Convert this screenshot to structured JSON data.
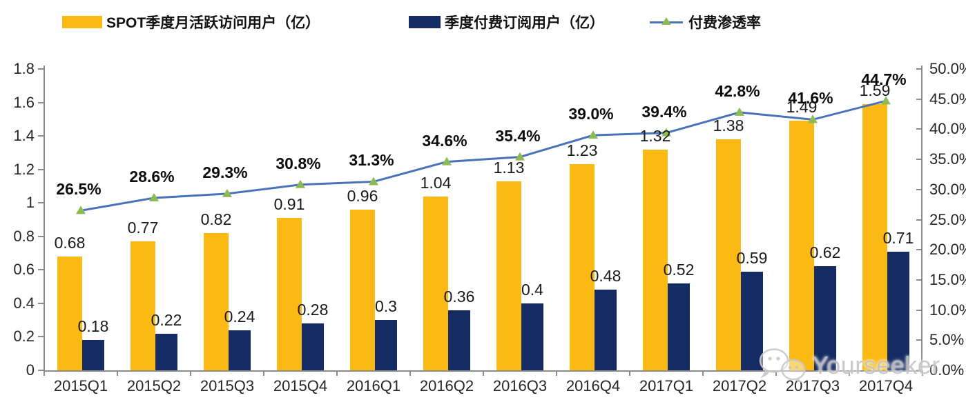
{
  "colors": {
    "mau_bar": "#FBB914",
    "sub_bar": "#142B63",
    "line": "#4A72B8",
    "marker": "#8CBB55",
    "axis": "#8C8C8C"
  },
  "legend": {
    "items": [
      {
        "label": "SPOT季度月活跃访问用户（亿）"
      },
      {
        "label": "季度付费订阅用户（亿）"
      },
      {
        "label": "付费渗透率"
      }
    ]
  },
  "watermark": {
    "text": "Yourseeker"
  },
  "chart_data": {
    "type": "combo-bar-line",
    "title": "",
    "grid": false,
    "legend_position": "top",
    "categories": [
      "2015Q1",
      "2015Q2",
      "2015Q3",
      "2015Q4",
      "2016Q1",
      "2016Q2",
      "2016Q3",
      "2016Q4",
      "2017Q1",
      "2017Q2",
      "2017Q3",
      "2017Q4"
    ],
    "series": [
      {
        "name": "SPOT季度月活跃访问用户（亿）",
        "type": "bar",
        "axis": "left",
        "color": "#FBB914",
        "values": [
          0.68,
          0.77,
          0.82,
          0.91,
          0.96,
          1.04,
          1.13,
          1.23,
          1.32,
          1.38,
          1.49,
          1.59
        ],
        "labels": [
          "0.68",
          "0.77",
          "0.82",
          "0.91",
          "0.96",
          "1.04",
          "1.13",
          "1.23",
          "1.32",
          "1.38",
          "1.49",
          "1.59"
        ]
      },
      {
        "name": "季度付费订阅用户（亿）",
        "type": "bar",
        "axis": "left",
        "color": "#142B63",
        "values": [
          0.18,
          0.22,
          0.24,
          0.28,
          0.3,
          0.36,
          0.4,
          0.48,
          0.52,
          0.59,
          0.62,
          0.71
        ],
        "labels": [
          "0.18",
          "0.22",
          "0.24",
          "0.28",
          "0.3",
          "0.36",
          "0.4",
          "0.48",
          "0.52",
          "0.59",
          "0.62",
          "0.71"
        ]
      },
      {
        "name": "付费渗透率",
        "type": "line",
        "axis": "right",
        "color": "#4A72B8",
        "marker": "triangle",
        "marker_color": "#8CBB55",
        "values": [
          26.5,
          28.6,
          29.3,
          30.8,
          31.3,
          34.6,
          35.4,
          39.0,
          39.4,
          42.8,
          41.6,
          44.7
        ],
        "labels": [
          "26.5%",
          "28.6%",
          "29.3%",
          "30.8%",
          "31.3%",
          "34.6%",
          "35.4%",
          "39.0%",
          "39.4%",
          "42.8%",
          "41.6%",
          "44.7%"
        ]
      }
    ],
    "left_axis": {
      "min": 0,
      "max": 1.8,
      "tick_labels": [
        "0",
        "0.2",
        "0.4",
        "0.6",
        "0.8",
        "1",
        "1.2",
        "1.4",
        "1.6",
        "1.8"
      ]
    },
    "right_axis": {
      "min": 0,
      "max": 50,
      "tick_labels": [
        "0.0%",
        "5.0%",
        "10.0%",
        "15.0%",
        "20.0%",
        "25.0%",
        "30.0%",
        "35.0%",
        "40.0%",
        "45.0%",
        "50.0%"
      ]
    }
  }
}
